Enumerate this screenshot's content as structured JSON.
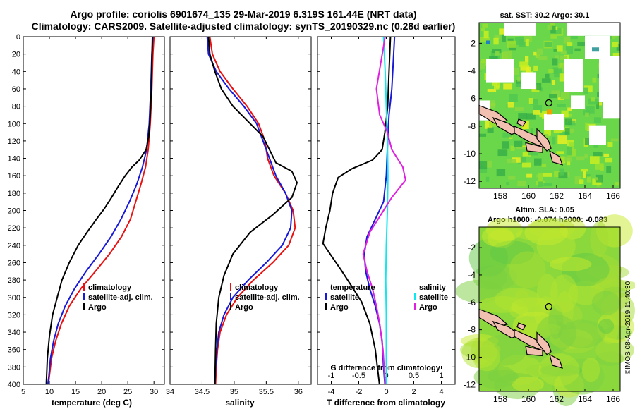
{
  "header": {
    "title_line1": "Argo profile: coriolis 6901674_135 29-Mar-2019 6.319S 161.44E (NRT data)",
    "title_line2": "Climatology: CARS2009. Satellite-adjusted climatology: synTS_20190329.nc (0.28d earlier)"
  },
  "footer": {
    "stamp": "©IMOS 08-Apr-2019 11:40:30"
  },
  "colors": {
    "climatology": "#e81010",
    "satellite": "#1818d8",
    "argo": "#000000",
    "magenta": "#e020e0",
    "cyan": "#10e8f0",
    "land": "#f2c0b0"
  },
  "chart_data": [
    {
      "id": "temperature",
      "type": "line",
      "xlabel": "temperature (deg C)",
      "ylabel": "",
      "xlim": [
        5,
        32
      ],
      "ylim": [
        400,
        0
      ],
      "xticks": [
        5,
        10,
        15,
        20,
        25,
        30
      ],
      "yticks": [
        0,
        20,
        40,
        60,
        80,
        100,
        120,
        140,
        160,
        180,
        200,
        220,
        240,
        260,
        280,
        300,
        320,
        340,
        360,
        380,
        400
      ],
      "legend_position": "bottom-center",
      "series": [
        {
          "name": "climatology",
          "color_key": "climatology",
          "points": [
            [
              30.0,
              0
            ],
            [
              29.8,
              20
            ],
            [
              29.6,
              60
            ],
            [
              29.3,
              100
            ],
            [
              28.9,
              130
            ],
            [
              28.4,
              150
            ],
            [
              27.5,
              170
            ],
            [
              26.5,
              190
            ],
            [
              25.5,
              210
            ],
            [
              23.8,
              230
            ],
            [
              21.5,
              250
            ],
            [
              18.8,
              270
            ],
            [
              16.0,
              290
            ],
            [
              13.8,
              310
            ],
            [
              12.3,
              330
            ],
            [
              11.2,
              350
            ],
            [
              10.4,
              370
            ],
            [
              10.0,
              390
            ],
            [
              9.8,
              400
            ]
          ]
        },
        {
          "name": "satellite-adj. clim.",
          "color_key": "satellite",
          "points": [
            [
              29.8,
              0
            ],
            [
              29.6,
              20
            ],
            [
              29.4,
              60
            ],
            [
              29.1,
              100
            ],
            [
              28.6,
              130
            ],
            [
              27.8,
              150
            ],
            [
              26.7,
              170
            ],
            [
              25.3,
              190
            ],
            [
              23.7,
              210
            ],
            [
              21.8,
              230
            ],
            [
              19.5,
              250
            ],
            [
              17.0,
              270
            ],
            [
              14.8,
              290
            ],
            [
              13.0,
              310
            ],
            [
              11.7,
              330
            ],
            [
              10.8,
              350
            ],
            [
              10.2,
              370
            ],
            [
              9.9,
              390
            ],
            [
              9.7,
              400
            ]
          ]
        },
        {
          "name": "Argo",
          "color_key": "argo",
          "points": [
            [
              29.7,
              0
            ],
            [
              29.6,
              30
            ],
            [
              29.5,
              60
            ],
            [
              29.3,
              90
            ],
            [
              29.0,
              115
            ],
            [
              28.5,
              130
            ],
            [
              27.2,
              142
            ],
            [
              25.8,
              150
            ],
            [
              24.5,
              160
            ],
            [
              23.2,
              172
            ],
            [
              21.8,
              186
            ],
            [
              20.5,
              198
            ],
            [
              19.0,
              210
            ],
            [
              17.2,
              225
            ],
            [
              15.5,
              240
            ],
            [
              13.8,
              260
            ],
            [
              12.4,
              280
            ],
            [
              11.5,
              300
            ],
            [
              10.6,
              320
            ],
            [
              10.0,
              345
            ],
            [
              9.6,
              370
            ],
            [
              9.4,
              400
            ]
          ]
        }
      ]
    },
    {
      "id": "salinity",
      "type": "line",
      "xlabel": "salinity",
      "ylabel": "",
      "xlim": [
        34,
        36.2
      ],
      "ylim": [
        400,
        0
      ],
      "xticks": [
        34,
        34.5,
        35,
        35.5,
        36
      ],
      "legend_position": "bottom-center",
      "series": [
        {
          "name": "climatology",
          "color_key": "climatology",
          "points": [
            [
              34.62,
              0
            ],
            [
              34.66,
              20
            ],
            [
              34.78,
              40
            ],
            [
              34.98,
              60
            ],
            [
              35.2,
              80
            ],
            [
              35.38,
              100
            ],
            [
              35.48,
              120
            ],
            [
              35.52,
              140
            ],
            [
              35.62,
              160
            ],
            [
              35.8,
              180
            ],
            [
              35.92,
              200
            ],
            [
              35.95,
              220
            ],
            [
              35.85,
              240
            ],
            [
              35.6,
              260
            ],
            [
              35.3,
              280
            ],
            [
              35.05,
              300
            ],
            [
              34.88,
              320
            ],
            [
              34.78,
              340
            ],
            [
              34.74,
              360
            ],
            [
              34.72,
              380
            ],
            [
              34.71,
              400
            ]
          ]
        },
        {
          "name": "satellite-adj. clim.",
          "color_key": "satellite",
          "points": [
            [
              34.58,
              0
            ],
            [
              34.6,
              20
            ],
            [
              34.72,
              40
            ],
            [
              34.92,
              60
            ],
            [
              35.15,
              80
            ],
            [
              35.35,
              100
            ],
            [
              35.45,
              120
            ],
            [
              35.55,
              140
            ],
            [
              35.65,
              160
            ],
            [
              35.8,
              180
            ],
            [
              35.9,
              200
            ],
            [
              35.88,
              220
            ],
            [
              35.75,
              240
            ],
            [
              35.5,
              260
            ],
            [
              35.22,
              280
            ],
            [
              34.98,
              300
            ],
            [
              34.84,
              320
            ],
            [
              34.76,
              340
            ],
            [
              34.73,
              360
            ],
            [
              34.71,
              380
            ],
            [
              34.7,
              400
            ]
          ]
        },
        {
          "name": "Argo",
          "color_key": "argo",
          "points": [
            [
              34.6,
              0
            ],
            [
              34.62,
              20
            ],
            [
              34.7,
              40
            ],
            [
              34.8,
              60
            ],
            [
              34.98,
              80
            ],
            [
              35.25,
              100
            ],
            [
              35.45,
              115
            ],
            [
              35.55,
              130
            ],
            [
              35.65,
              145
            ],
            [
              35.9,
              155
            ],
            [
              35.98,
              168
            ],
            [
              35.9,
              185
            ],
            [
              35.6,
              205
            ],
            [
              35.25,
              225
            ],
            [
              34.98,
              250
            ],
            [
              34.84,
              275
            ],
            [
              34.76,
              300
            ],
            [
              34.72,
              330
            ],
            [
              34.71,
              360
            ],
            [
              34.7,
              400
            ]
          ]
        }
      ]
    },
    {
      "id": "differences",
      "type": "line",
      "xlabel": "T difference from climatology",
      "x2label": "S difference from climatology",
      "xlim": [
        -5,
        5
      ],
      "x2lim": [
        -1.25,
        1.25
      ],
      "ylim": [
        400,
        0
      ],
      "xticks": [
        -4,
        -2,
        0,
        2,
        4
      ],
      "x2ticks": [
        -1,
        -0.5,
        0,
        0.5,
        1
      ],
      "legend_position": "bottom",
      "series": [
        {
          "name": "satellite",
          "group": "temperature",
          "color_key": "satellite",
          "axis": "T",
          "points": [
            [
              0.6,
              0
            ],
            [
              0.5,
              30
            ],
            [
              0.4,
              60
            ],
            [
              0.2,
              90
            ],
            [
              0.1,
              120
            ],
            [
              0.0,
              160
            ],
            [
              -0.2,
              190
            ],
            [
              -0.8,
              210
            ],
            [
              -1.4,
              230
            ],
            [
              -1.6,
              250
            ],
            [
              -1.5,
              270
            ],
            [
              -1.2,
              290
            ],
            [
              -0.8,
              310
            ],
            [
              -0.5,
              330
            ],
            [
              -0.3,
              350
            ],
            [
              -0.2,
              380
            ],
            [
              -0.1,
              400
            ]
          ]
        },
        {
          "name": "Argo",
          "group": "temperature",
          "color_key": "argo",
          "axis": "T",
          "points": [
            [
              0.3,
              0
            ],
            [
              0.2,
              40
            ],
            [
              0.1,
              80
            ],
            [
              -0.1,
              110
            ],
            [
              -0.3,
              130
            ],
            [
              -1.0,
              142
            ],
            [
              -2.5,
              152
            ],
            [
              -3.5,
              162
            ],
            [
              -3.9,
              180
            ],
            [
              -4.1,
              200
            ],
            [
              -4.4,
              220
            ],
            [
              -4.6,
              238
            ],
            [
              -4.0,
              252
            ],
            [
              -3.3,
              268
            ],
            [
              -2.6,
              285
            ],
            [
              -1.8,
              305
            ],
            [
              -1.2,
              330
            ],
            [
              -0.8,
              360
            ],
            [
              -0.5,
              400
            ]
          ]
        },
        {
          "name": "satellite",
          "group": "salinity",
          "color_key": "cyan",
          "axis": "S",
          "points": [
            [
              -0.05,
              0
            ],
            [
              -0.02,
              40
            ],
            [
              0.0,
              80
            ],
            [
              0.02,
              120
            ],
            [
              0.03,
              160
            ],
            [
              0.02,
              200
            ],
            [
              0.0,
              240
            ],
            [
              -0.01,
              280
            ],
            [
              0.0,
              320
            ],
            [
              0.0,
              360
            ],
            [
              0.0,
              400
            ]
          ]
        },
        {
          "name": "Argo",
          "group": "salinity",
          "color_key": "magenta",
          "axis": "S",
          "points": [
            [
              -0.02,
              0
            ],
            [
              -0.1,
              30
            ],
            [
              -0.18,
              60
            ],
            [
              -0.12,
              90
            ],
            [
              0.02,
              110
            ],
            [
              0.1,
              130
            ],
            [
              0.3,
              150
            ],
            [
              0.35,
              165
            ],
            [
              0.1,
              185
            ],
            [
              -0.1,
              205
            ],
            [
              -0.3,
              225
            ],
            [
              -0.42,
              250
            ],
            [
              -0.35,
              270
            ],
            [
              -0.25,
              290
            ],
            [
              -0.18,
              310
            ],
            [
              -0.12,
              330
            ],
            [
              -0.06,
              360
            ],
            [
              -0.02,
              400
            ]
          ]
        }
      ]
    },
    {
      "id": "sst-map",
      "type": "heatmap",
      "title": "sat. SST: 30.2 Argo: 30.1",
      "xticks": [
        "158",
        "160",
        "162",
        "164",
        "166"
      ],
      "yticks": [
        "-2",
        "-4",
        "-6",
        "-8",
        "-10",
        "-12"
      ],
      "xlim": [
        156.5,
        166.5
      ],
      "ylim": [
        -12.5,
        -0.5
      ],
      "marker": {
        "lon": 161.44,
        "lat": -6.319
      },
      "fill_color": "#6ad64a",
      "patch_colors": [
        "#98e030",
        "#50c850",
        "#c8ee20",
        "#38b048",
        "#88d840",
        "#e8f020"
      ],
      "gap_color": "#ffffff"
    },
    {
      "id": "sla-map",
      "type": "heatmap",
      "title": "Altim. SLA: 0.05",
      "subtitle": "Argo h1000: -0.074 h2000: -0.083",
      "xticks": [
        "158",
        "160",
        "162",
        "164",
        "166"
      ],
      "yticks": [
        "-2",
        "-4",
        "-6",
        "-8",
        "-10",
        "-12"
      ],
      "xlim": [
        156.5,
        166.5
      ],
      "ylim": [
        -12.5,
        -0.5
      ],
      "marker": {
        "lon": 161.44,
        "lat": -6.319
      },
      "fill_color": "#8ad83c",
      "patch_colors": [
        "#a6dc34",
        "#7cd040",
        "#c8ea2c",
        "#60c846",
        "#b4e430"
      ]
    }
  ]
}
